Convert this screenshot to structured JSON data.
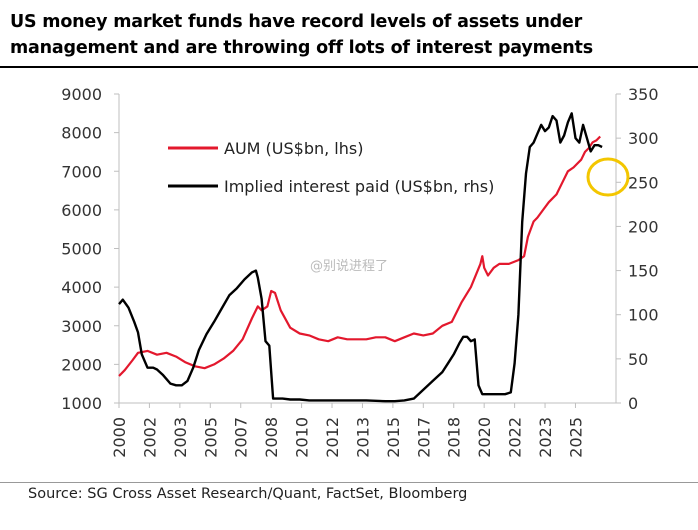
{
  "header": {
    "title_line1": "US money market funds have record levels of assets under",
    "title_line2": "management and are throwing off lots of interest payments"
  },
  "footer": {
    "source": "Source: SG Cross Asset Research/Quant, FactSet, Bloomberg"
  },
  "watermark": "@别说进程了",
  "colors": {
    "aum": "#e3182d",
    "interest": "#000000",
    "highlight": "#f3c600",
    "axis": "#bfbfbf"
  },
  "chart_data": {
    "type": "line",
    "title": "US money market funds have record levels of assets under management and are throwing off lots of interest payments",
    "x_tick_labels": [
      "2000",
      "2002",
      "2003",
      "2005",
      "2007",
      "2008",
      "2010",
      "2012",
      "2013",
      "2015",
      "2017",
      "2018",
      "2020",
      "2022",
      "2023",
      "2025"
    ],
    "x_tick_positions": [
      2000,
      2001.6,
      2003.2,
      2004.8,
      2006.4,
      2008,
      2009.6,
      2011.2,
      2012.8,
      2014.4,
      2016,
      2017.6,
      2019.2,
      2020.8,
      2022.4,
      2024.0
    ],
    "xlim": [
      2000,
      2025.5
    ],
    "y_left": {
      "ylim": [
        1000,
        9000
      ],
      "ticks": [
        1000,
        2000,
        3000,
        4000,
        5000,
        6000,
        7000,
        8000,
        9000
      ]
    },
    "y_right": {
      "ylim": [
        0,
        350
      ],
      "ticks": [
        0,
        50,
        100,
        150,
        200,
        250,
        300,
        350
      ],
      "top_label": ""
    },
    "legend_position": "top-left",
    "grid": false,
    "annotation": "yellow circle highlighting recent decline in interest paid",
    "series": [
      {
        "name": "AUM (US$bn, lhs)",
        "axis": "left",
        "x": [
          2000,
          2000.3,
          2000.7,
          2001,
          2001.5,
          2002,
          2002.5,
          2003,
          2003.5,
          2004,
          2004.5,
          2005,
          2005.5,
          2006,
          2006.5,
          2007,
          2007.3,
          2007.5,
          2007.8,
          2008,
          2008.2,
          2008.5,
          2009,
          2009.5,
          2010,
          2010.5,
          2011,
          2011.5,
          2012,
          2012.5,
          2013,
          2013.5,
          2014,
          2014.5,
          2015,
          2015.5,
          2016,
          2016.5,
          2017,
          2017.5,
          2018,
          2018.5,
          2019,
          2019.1,
          2019.2,
          2019.4,
          2019.7,
          2020,
          2020.5,
          2021,
          2021.3,
          2021.5,
          2021.8,
          2022,
          2022.3,
          2022.6,
          2023,
          2023.3,
          2023.6,
          2023.9,
          2024.1,
          2024.3,
          2024.5,
          2024.7,
          2024.9,
          2025.1,
          2025.3
        ],
        "values": [
          1700,
          1850,
          2100,
          2300,
          2350,
          2250,
          2300,
          2200,
          2050,
          1950,
          1900,
          2000,
          2150,
          2350,
          2650,
          3200,
          3500,
          3400,
          3500,
          3900,
          3850,
          3400,
          2950,
          2800,
          2750,
          2650,
          2600,
          2700,
          2650,
          2650,
          2650,
          2700,
          2700,
          2600,
          2700,
          2800,
          2750,
          2800,
          3000,
          3100,
          3600,
          4000,
          4600,
          4800,
          4500,
          4300,
          4500,
          4600,
          4600,
          4700,
          4800,
          5300,
          5700,
          5800,
          6000,
          6200,
          6400,
          6700,
          7000,
          7100,
          7200,
          7300,
          7500,
          7600,
          7750,
          7800,
          7900
        ]
      },
      {
        "name": "Implied interest paid (US$bn, rhs)",
        "axis": "right",
        "x": [
          2000,
          2000.2,
          2000.5,
          2000.8,
          2001,
          2001.2,
          2001.5,
          2001.8,
          2002,
          2002.3,
          2002.7,
          2003,
          2003.3,
          2003.6,
          2003.9,
          2004.2,
          2004.6,
          2005,
          2005.4,
          2005.8,
          2006.2,
          2006.6,
          2007,
          2007.2,
          2007.3,
          2007.5,
          2007.7,
          2007.9,
          2008.1,
          2008.3,
          2008.6,
          2009,
          2009.5,
          2010,
          2011,
          2012,
          2013,
          2014,
          2014.5,
          2015,
          2015.5,
          2016,
          2016.5,
          2017,
          2017.3,
          2017.6,
          2017.9,
          2018.1,
          2018.3,
          2018.5,
          2018.7,
          2018.9,
          2019,
          2019.1,
          2019.3,
          2019.6,
          2020,
          2020.3,
          2020.6,
          2020.8,
          2021,
          2021.2,
          2021.4,
          2021.6,
          2021.8,
          2022,
          2022.2,
          2022.4,
          2022.6,
          2022.8,
          2023,
          2023.2,
          2023.4,
          2023.6,
          2023.8,
          2024,
          2024.2,
          2024.4,
          2024.6,
          2024.8,
          2025,
          2025.2,
          2025.4
        ],
        "values": [
          112,
          117,
          108,
          92,
          80,
          55,
          40,
          40,
          38,
          32,
          22,
          20,
          20,
          25,
          40,
          60,
          78,
          92,
          107,
          122,
          130,
          140,
          148,
          150,
          142,
          118,
          70,
          65,
          5,
          5,
          5,
          4,
          4,
          3,
          3,
          3,
          3,
          2,
          2,
          3,
          5,
          15,
          25,
          35,
          45,
          55,
          68,
          75,
          75,
          70,
          72,
          20,
          15,
          10,
          10,
          10,
          10,
          10,
          12,
          45,
          100,
          205,
          260,
          290,
          295,
          305,
          315,
          308,
          312,
          325,
          320,
          295,
          303,
          318,
          328,
          300,
          295,
          315,
          300,
          285,
          292,
          292,
          290
        ]
      }
    ]
  }
}
